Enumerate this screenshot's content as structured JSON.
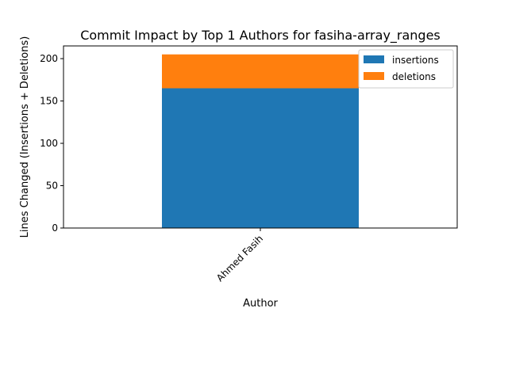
{
  "chart_data": {
    "type": "bar",
    "stacked": true,
    "title": "Commit Impact by Top 1 Authors for fasiha-array_ranges",
    "xlabel": "Author",
    "ylabel": "Lines Changed (Insertions + Deletions)",
    "categories": [
      "Ahmed Fasih"
    ],
    "series": [
      {
        "name": "insertions",
        "values": [
          165
        ],
        "color": "#1f77b4"
      },
      {
        "name": "deletions",
        "values": [
          40
        ],
        "color": "#ff7f0e"
      }
    ],
    "ylim": [
      0,
      215
    ],
    "yticks": [
      "0",
      "50",
      "100",
      "150",
      "200"
    ],
    "grid": false,
    "legend_position": "top-right",
    "xtick_rotation": 45
  }
}
